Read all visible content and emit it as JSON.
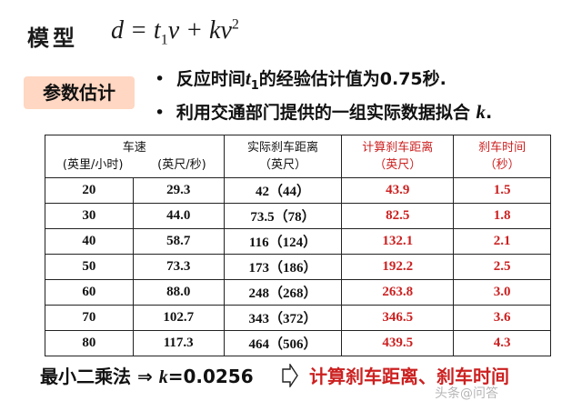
{
  "model": {
    "label": "模型",
    "formula_lhs": "d",
    "formula_eq": "=",
    "formula_t": "t",
    "formula_t_sub": "1",
    "formula_v": "v",
    "formula_plus": "+",
    "formula_kv": "kv",
    "formula_sup": "2"
  },
  "param": {
    "box_label": "参数估计",
    "bullet1_pre": "反应时间",
    "bullet1_var": "t",
    "bullet1_sub": "1",
    "bullet1_post": "的经验估计值为0.75秒.",
    "bullet2_pre": "利用交通部门提供的一组实际数据拟合",
    "bullet2_var": "k",
    "bullet2_post": "."
  },
  "table": {
    "headers": {
      "speed": "车速",
      "speed_unit_mph": "(英里/小时)",
      "speed_unit_fps": "(英尺/秒)",
      "actual": "实际刹车距离",
      "actual_unit": "（英尺）",
      "calc": "计算刹车距离",
      "calc_unit": "（英尺）",
      "time": "刹车时间",
      "time_unit": "（秒）"
    },
    "rows": [
      {
        "mph": "20",
        "fps": "29.3",
        "actual": "42（44）",
        "calc": "43.9",
        "time": "1.5"
      },
      {
        "mph": "30",
        "fps": "44.0",
        "actual": "73.5（78）",
        "calc": "82.5",
        "time": "1.8"
      },
      {
        "mph": "40",
        "fps": "58.7",
        "actual": "116（124）",
        "calc": "132.1",
        "time": "2.1"
      },
      {
        "mph": "50",
        "fps": "73.3",
        "actual": "173（186）",
        "calc": "192.2",
        "time": "2.5"
      },
      {
        "mph": "60",
        "fps": "88.0",
        "actual": "248（268）",
        "calc": "263.8",
        "time": "3.0"
      },
      {
        "mph": "70",
        "fps": "102.7",
        "actual": "343（372）",
        "calc": "346.5",
        "time": "3.6"
      },
      {
        "mph": "80",
        "fps": "117.3",
        "actual": "464（506）",
        "calc": "439.5",
        "time": "4.3"
      }
    ]
  },
  "bottom": {
    "method": "最小二乘法",
    "implies": "⇒",
    "k_var": "k",
    "k_value": "=0.0256",
    "result": "计算刹车距离、刹车时间"
  },
  "watermark": "头条@问答",
  "colors": {
    "accent_red": "#cc2020",
    "param_box_bg": "#ffd7c2"
  }
}
